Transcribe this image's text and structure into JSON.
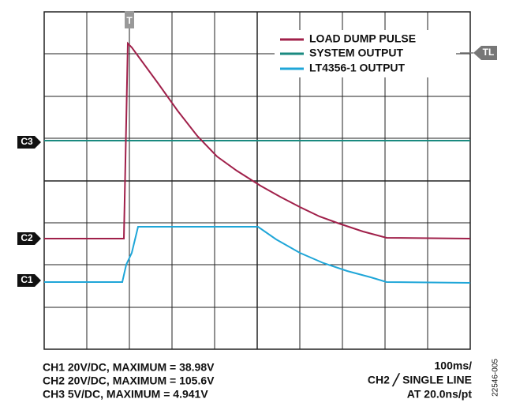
{
  "markers": {
    "trigger": "T",
    "trigger_level": "TL",
    "ch3": "C3",
    "ch2": "C2",
    "ch1": "C1"
  },
  "legend": [
    "LOAD DUMP PULSE",
    "SYSTEM OUTPUT",
    "LT4356-1 OUTPUT"
  ],
  "settings_left": [
    "CH1  20V/DC, MAXIMUM = 38.98V",
    "CH2  20V/DC, MAXIMUM = 105.6V",
    "CH3  5V/DC, MAXIMUM = 4.941V"
  ],
  "settings_right": [
    "100ms/",
    "CH2 ╱ SINGLE LINE",
    "AT 20.0ns/pt"
  ],
  "figure_id": "22546-005"
}
